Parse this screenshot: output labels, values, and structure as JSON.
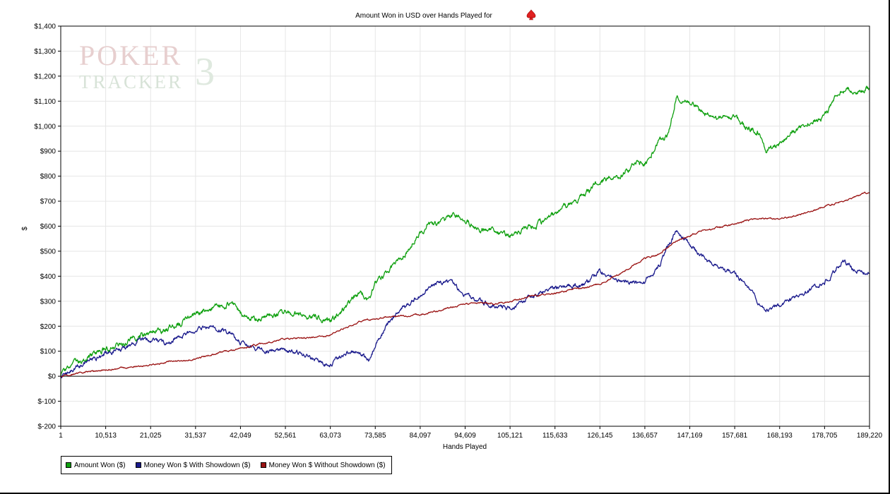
{
  "chart_data": {
    "type": "line",
    "title": "Amount Won in USD over Hands Played for",
    "title_icon": "spade-icon",
    "xlabel": "Hands Played",
    "ylabel": "$",
    "xlim": [
      1,
      189220
    ],
    "ylim": [
      -200,
      1400
    ],
    "x_ticks": [
      1,
      10513,
      21025,
      31537,
      42049,
      52561,
      63073,
      73585,
      84097,
      94609,
      105121,
      115633,
      126145,
      136657,
      147169,
      157681,
      168193,
      178705,
      189220
    ],
    "x_tick_labels": [
      "1",
      "10,513",
      "21,025",
      "31,537",
      "42,049",
      "52,561",
      "63,073",
      "73,585",
      "84,097",
      "94,609",
      "105,121",
      "115,633",
      "126,145",
      "136,657",
      "147,169",
      "157,681",
      "168,193",
      "178,705",
      "189,220"
    ],
    "y_ticks": [
      -200,
      -100,
      0,
      100,
      200,
      300,
      400,
      500,
      600,
      700,
      800,
      900,
      1000,
      1100,
      1200,
      1300,
      1400
    ],
    "y_tick_labels": [
      "$-200",
      "$-100",
      "$0",
      "$100",
      "$200",
      "$300",
      "$400",
      "$500",
      "$600",
      "$700",
      "$800",
      "$900",
      "$1,000",
      "$1,100",
      "$1,200",
      "$1,300",
      "$1,400"
    ],
    "grid": true,
    "legend_position": "bottom-left",
    "watermark": {
      "line1": "POKER",
      "line2": "TRACKER",
      "mark": "3"
    },
    "series": [
      {
        "name": "Amount Won ($)",
        "color": "#0fa00f",
        "x": [
          1,
          2000,
          5000,
          8000,
          10500,
          15000,
          18000,
          21000,
          25000,
          28000,
          31500,
          34000,
          38000,
          40000,
          42000,
          44000,
          46000,
          48000,
          52500,
          56000,
          60000,
          63000,
          65000,
          68000,
          70000,
          72000,
          73500,
          76000,
          80000,
          84000,
          86000,
          90000,
          92000,
          94600,
          96000,
          98000,
          100000,
          103000,
          105000,
          108000,
          110000,
          113000,
          115600,
          118000,
          122000,
          126100,
          128000,
          131000,
          134000,
          136600,
          140000,
          142000,
          144000,
          147000,
          150000,
          153000,
          157600,
          160000,
          163000,
          165000,
          168000,
          171000,
          174000,
          178700,
          181000,
          183000,
          186000,
          189220
        ],
        "y": [
          0,
          35,
          60,
          90,
          110,
          135,
          160,
          180,
          190,
          215,
          250,
          270,
          285,
          300,
          255,
          240,
          230,
          240,
          255,
          245,
          235,
          215,
          250,
          300,
          340,
          300,
          370,
          410,
          480,
          570,
          610,
          620,
          650,
          620,
          610,
          580,
          600,
          580,
          560,
          580,
          600,
          620,
          650,
          680,
          720,
          780,
          790,
          800,
          850,
          850,
          940,
          960,
          1120,
          1100,
          1060,
          1030,
          1040,
          1000,
          980,
          900,
          930,
          980,
          1010,
          1040,
          1100,
          1150,
          1140,
          1150
        ]
      },
      {
        "name": "Money Won $ With Showdown ($)",
        "color": "#1a1a8c",
        "x": [
          1,
          3000,
          6000,
          10500,
          15000,
          18000,
          21000,
          25000,
          28000,
          31500,
          34000,
          38000,
          40000,
          42000,
          44000,
          48000,
          52500,
          56000,
          60000,
          63000,
          66000,
          68000,
          70000,
          72000,
          73500,
          76000,
          80000,
          84000,
          86000,
          90000,
          92000,
          94600,
          96000,
          100000,
          103000,
          105100,
          108000,
          112000,
          115600,
          119000,
          122000,
          126100,
          130000,
          133000,
          136600,
          140000,
          142000,
          144000,
          146000,
          148000,
          152000,
          157600,
          160000,
          163000,
          165000,
          168000,
          172000,
          175000,
          178700,
          181000,
          183000,
          186000,
          189220
        ],
        "y": [
          0,
          30,
          60,
          90,
          110,
          140,
          145,
          130,
          160,
          180,
          200,
          190,
          170,
          140,
          120,
          100,
          110,
          90,
          60,
          45,
          80,
          100,
          90,
          60,
          120,
          200,
          270,
          320,
          350,
          380,
          370,
          320,
          310,
          290,
          280,
          270,
          300,
          330,
          350,
          370,
          360,
          420,
          390,
          370,
          380,
          440,
          520,
          580,
          550,
          510,
          450,
          410,
          370,
          300,
          270,
          280,
          310,
          340,
          380,
          420,
          460,
          420,
          410
        ]
      },
      {
        "name": "Money Won $ Without Showdown ($)",
        "color": "#9a1313",
        "x": [
          1,
          5000,
          10500,
          15000,
          21000,
          26000,
          31500,
          36000,
          42000,
          47000,
          52500,
          58000,
          63000,
          66000,
          70000,
          73500,
          78000,
          84000,
          88000,
          94600,
          98000,
          102000,
          105100,
          110000,
          115600,
          121000,
          126100,
          131000,
          136600,
          140000,
          144000,
          147100,
          150000,
          153000,
          157600,
          160000,
          163000,
          168100,
          172000,
          176000,
          178700,
          183000,
          186000,
          189220
        ],
        "y": [
          0,
          15,
          25,
          35,
          45,
          60,
          70,
          90,
          110,
          130,
          150,
          155,
          165,
          190,
          220,
          230,
          240,
          245,
          260,
          290,
          295,
          290,
          300,
          320,
          330,
          350,
          370,
          410,
          470,
          490,
          540,
          560,
          580,
          590,
          610,
          620,
          630,
          630,
          640,
          660,
          680,
          700,
          720,
          735
        ]
      }
    ]
  }
}
